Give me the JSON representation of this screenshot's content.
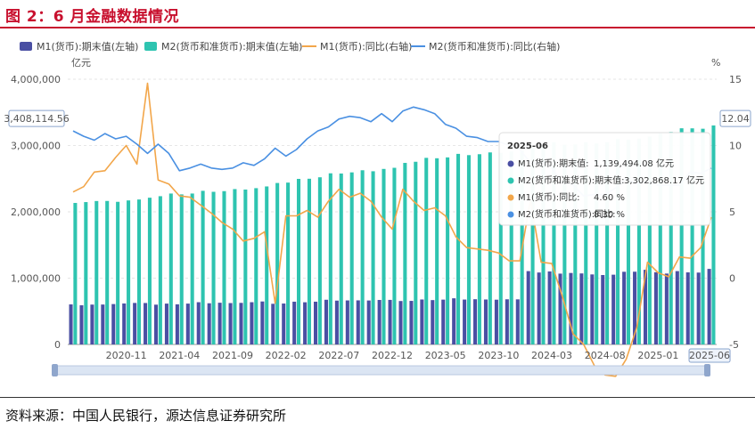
{
  "figure_title": "图 2：6 月金融数据情况",
  "source_note": "资料来源：中国人民银行，源达信息证券研究所",
  "colors": {
    "m1_bar": "#4a4fa3",
    "m2_bar": "#2ec4b0",
    "m1_line": "#f2a64a",
    "m2_line": "#4a90e2",
    "title_red": "#c8102e"
  },
  "chart_data": {
    "type": "bar",
    "legend": [
      {
        "label": "M1(货币):期末值(左轴)",
        "kind": "bar",
        "color": "#4a4fa3"
      },
      {
        "label": "M2(货币和准货币):期末值(左轴)",
        "kind": "bar",
        "color": "#2ec4b0"
      },
      {
        "label": "M1(货币):同比(右轴)",
        "kind": "line",
        "color": "#f2a64a"
      },
      {
        "label": "M2(货币和准货币):同比(右轴)",
        "kind": "line",
        "color": "#4a90e2"
      }
    ],
    "legend_position": "top",
    "y_left_unit": "亿元",
    "y_right_unit": "%",
    "y_left_ticks": [
      "0",
      "1,000,000",
      "2,000,000",
      "3,000,000",
      "4,000,000"
    ],
    "y_left_range": [
      0,
      4000000
    ],
    "y_right_ticks": [
      "-5",
      "0",
      "5",
      "10",
      "15"
    ],
    "y_right_range": [
      -5,
      15
    ],
    "x_tick_labels": [
      "2020-11",
      "2021-04",
      "2021-09",
      "2022-02",
      "2022-07",
      "2022-12",
      "2023-05",
      "2023-10",
      "2024-03",
      "2024-08",
      "2025-01"
    ],
    "x_end_label": "2025-06",
    "left_axis_pointer": "3,408,114.56",
    "right_axis_pointer": "12.04",
    "grid": true,
    "categories": [
      "2020-06",
      "2020-07",
      "2020-08",
      "2020-09",
      "2020-10",
      "2020-11",
      "2020-12",
      "2021-01",
      "2021-02",
      "2021-03",
      "2021-04",
      "2021-05",
      "2021-06",
      "2021-07",
      "2021-08",
      "2021-09",
      "2021-10",
      "2021-11",
      "2021-12",
      "2022-01",
      "2022-02",
      "2022-03",
      "2022-04",
      "2022-05",
      "2022-06",
      "2022-07",
      "2022-08",
      "2022-09",
      "2022-10",
      "2022-11",
      "2022-12",
      "2023-01",
      "2023-02",
      "2023-03",
      "2023-04",
      "2023-05",
      "2023-06",
      "2023-07",
      "2023-08",
      "2023-09",
      "2023-10",
      "2023-11",
      "2023-12",
      "2024-01",
      "2024-02",
      "2024-03",
      "2024-04",
      "2024-05",
      "2024-06",
      "2024-07",
      "2024-08",
      "2024-09",
      "2024-10",
      "2024-11",
      "2024-12",
      "2025-01",
      "2025-02",
      "2025-03",
      "2025-04",
      "2025-05",
      "2025-06"
    ],
    "series": [
      {
        "name": "M1(货币):期末值(左轴)",
        "axis": "left",
        "type": "bar",
        "values": [
          604000,
          591000,
          601000,
          602000,
          609000,
          618000,
          626000,
          625000,
          600000,
          616000,
          605000,
          616000,
          637000,
          621000,
          629000,
          624000,
          627000,
          637000,
          648000,
          613000,
          617000,
          645000,
          636000,
          645000,
          674000,
          661000,
          664000,
          665000,
          663000,
          671000,
          672000,
          655000,
          657000,
          678000,
          669000,
          676000,
          696000,
          677000,
          682000,
          678000,
          675000,
          681000,
          680000,
          1106000,
          1085000,
          1101000,
          1068000,
          1078000,
          1071000,
          1056000,
          1047000,
          1052000,
          1096000,
          1097000,
          1126000,
          1089000,
          1069000,
          1106000,
          1087000,
          1084000,
          1139494.08
        ]
      },
      {
        "name": "M2(货币和准货币):期末值(左轴)",
        "axis": "left",
        "type": "bar",
        "values": [
          2134000,
          2147000,
          2163000,
          2164000,
          2151000,
          2172000,
          2186000,
          2213000,
          2236000,
          2276000,
          2263000,
          2276000,
          2317000,
          2302000,
          2312000,
          2343000,
          2336000,
          2357000,
          2383000,
          2435000,
          2441000,
          2497000,
          2499000,
          2521000,
          2581000,
          2578000,
          2595000,
          2627000,
          2612000,
          2647000,
          2664000,
          2738000,
          2755000,
          2814000,
          2808000,
          2821000,
          2874000,
          2855000,
          2869000,
          2896000,
          2888000,
          2911000,
          2923000,
          2976000,
          2992000,
          3047000,
          3013000,
          3016000,
          3050000,
          3031000,
          3050000,
          3096000,
          3090000,
          3102000,
          3135000,
          3184000,
          3205000,
          3260000,
          3259000,
          3253000,
          3302868.17
        ]
      },
      {
        "name": "M1(货币):同比(右轴)",
        "axis": "right",
        "type": "line",
        "values": [
          6.5,
          6.9,
          8.0,
          8.1,
          9.1,
          10.0,
          8.6,
          14.7,
          7.4,
          7.1,
          6.2,
          6.1,
          5.5,
          4.9,
          4.2,
          3.7,
          2.8,
          3.0,
          3.5,
          -1.9,
          4.7,
          4.7,
          5.1,
          4.6,
          5.8,
          6.7,
          6.1,
          6.4,
          5.8,
          4.6,
          3.7,
          6.7,
          5.8,
          5.1,
          5.3,
          4.7,
          3.1,
          2.3,
          2.2,
          2.1,
          1.9,
          1.3,
          1.3,
          5.9,
          1.2,
          1.1,
          -1.4,
          -4.2,
          -5.0,
          -6.6,
          -7.3,
          -7.4,
          -6.1,
          -3.7,
          1.2,
          0.4,
          0.1,
          1.6,
          1.5,
          2.3,
          4.6
        ]
      },
      {
        "name": "M2(货币和准货币):同比(右轴)",
        "axis": "right",
        "type": "line",
        "values": [
          11.1,
          10.7,
          10.4,
          10.9,
          10.5,
          10.7,
          10.1,
          9.4,
          10.1,
          9.4,
          8.1,
          8.3,
          8.6,
          8.3,
          8.2,
          8.3,
          8.7,
          8.5,
          9.0,
          9.8,
          9.2,
          9.7,
          10.5,
          11.1,
          11.4,
          12.0,
          12.2,
          12.1,
          11.8,
          12.4,
          11.8,
          12.6,
          12.9,
          12.7,
          12.4,
          11.6,
          11.3,
          10.7,
          10.6,
          10.3,
          10.3,
          10.0,
          9.7,
          8.7,
          8.7,
          8.3,
          7.2,
          7.0,
          6.2,
          6.3,
          6.3,
          6.8,
          7.5,
          7.1,
          7.3,
          7.0,
          7.0,
          7.0,
          8.0,
          7.9,
          8.3
        ]
      }
    ],
    "tooltip": {
      "category": "2025-06",
      "rows": [
        {
          "label": "M1(货币):期末值:",
          "value": "1,139,494.08 亿元",
          "color": "#4a4fa3"
        },
        {
          "label": "M2(货币和准货币):期末值:",
          "value": "3,302,868.17 亿元",
          "color": "#2ec4b0"
        },
        {
          "label": "M1(货币):同比:",
          "value": "4.60 %",
          "color": "#f2a64a"
        },
        {
          "label": "M2(货币和准货币):同比:",
          "value": "8.30 %",
          "color": "#4a90e2"
        }
      ]
    }
  }
}
